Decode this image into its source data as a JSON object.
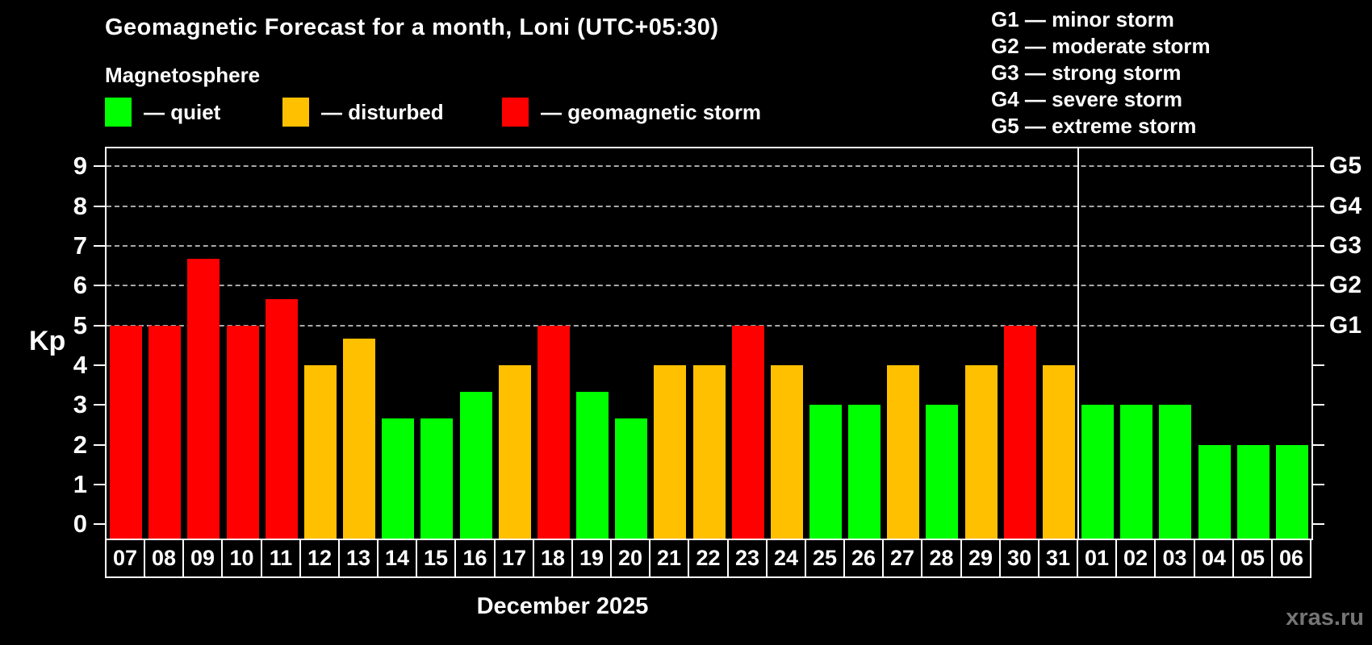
{
  "title": "Geomagnetic Forecast for a month, Loni (UTC+05:30)",
  "subtitle": "Magnetosphere",
  "legend": {
    "items": [
      {
        "key": "quiet",
        "label": "— quiet",
        "color": "#00ff00"
      },
      {
        "key": "disturbed",
        "label": "— disturbed",
        "color": "#ffc000"
      },
      {
        "key": "storm",
        "label": "— geomagnetic storm",
        "color": "#ff0000"
      }
    ]
  },
  "g_legend": [
    "G1 — minor storm",
    "G2 — moderate storm",
    "G3 — strong storm",
    "G4 — severe storm",
    "G5 — extreme storm"
  ],
  "axes": {
    "y_label": "Kp",
    "x_label": "December 2025"
  },
  "watermark": "xras.ru",
  "chart_data": {
    "type": "bar",
    "title": "Geomagnetic Forecast for a month, Loni (UTC+05:30)",
    "xlabel": "December 2025",
    "ylabel": "Kp",
    "ylim": [
      -0.4,
      9.45
    ],
    "y_ticks": [
      0,
      1,
      2,
      3,
      4,
      5,
      6,
      7,
      8,
      9
    ],
    "gridlines_at": [
      5,
      6,
      7,
      8,
      9
    ],
    "grid_style": "horizontal dashed gray at storm levels only",
    "right_axis_labels": {
      "5": "G1",
      "6": "G2",
      "7": "G3",
      "8": "G4",
      "9": "G5"
    },
    "legend_position": "top-left",
    "categories": [
      "07",
      "08",
      "09",
      "10",
      "11",
      "12",
      "13",
      "14",
      "15",
      "16",
      "17",
      "18",
      "19",
      "20",
      "21",
      "22",
      "23",
      "24",
      "25",
      "26",
      "27",
      "28",
      "29",
      "30",
      "31",
      "01",
      "02",
      "03",
      "04",
      "05",
      "06"
    ],
    "values": [
      5,
      5,
      6.67,
      5,
      5.67,
      4,
      4.67,
      2.67,
      2.67,
      3.33,
      4,
      5,
      3.33,
      2.67,
      4,
      4,
      5,
      4,
      3,
      3,
      4,
      3,
      4,
      5,
      4,
      3,
      3,
      3,
      2,
      2,
      2
    ],
    "levels": [
      "storm",
      "storm",
      "storm",
      "storm",
      "storm",
      "disturbed",
      "disturbed",
      "quiet",
      "quiet",
      "quiet",
      "disturbed",
      "storm",
      "quiet",
      "quiet",
      "disturbed",
      "disturbed",
      "storm",
      "disturbed",
      "quiet",
      "quiet",
      "disturbed",
      "quiet",
      "disturbed",
      "storm",
      "disturbed",
      "quiet",
      "quiet",
      "quiet",
      "quiet",
      "quiet",
      "quiet"
    ],
    "level_colors": {
      "quiet": "#00ff00",
      "disturbed": "#ffc000",
      "storm": "#ff0000"
    },
    "month_separator_after_category": "31"
  }
}
